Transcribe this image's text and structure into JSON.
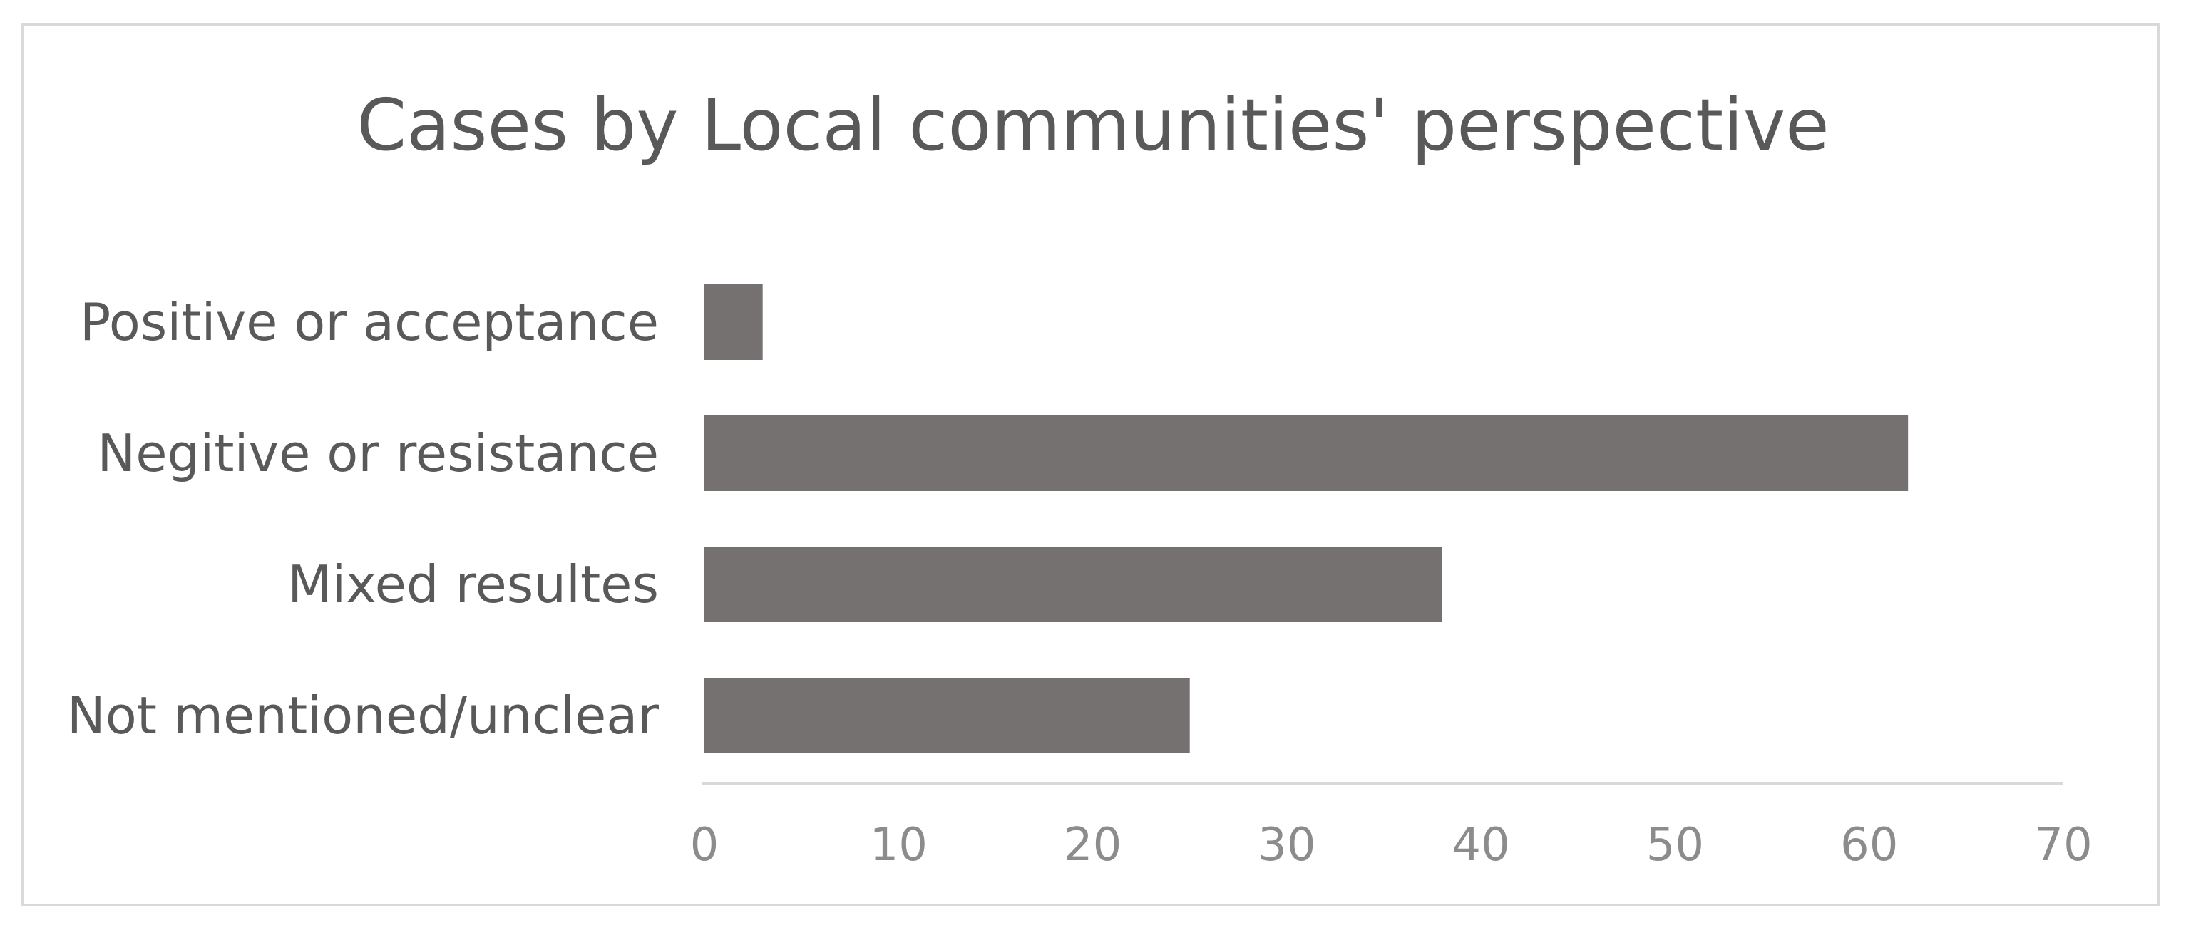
{
  "chart_data": {
    "type": "bar",
    "orientation": "horizontal",
    "title": "Cases by Local communities' perspective",
    "categories": [
      "Positive or acceptance",
      "Negitive or resistance",
      "Mixed resultes",
      "Not mentioned/unclear"
    ],
    "values": [
      3,
      62,
      38,
      25
    ],
    "xlim": [
      0,
      70
    ],
    "xticks": [
      "0",
      "10",
      "20",
      "30",
      "40",
      "50",
      "60",
      "70"
    ],
    "xlabel": "",
    "ylabel": "",
    "grid": false,
    "legend": "none",
    "bar_color": "#767171",
    "axis_color": "#d9d9d9"
  }
}
